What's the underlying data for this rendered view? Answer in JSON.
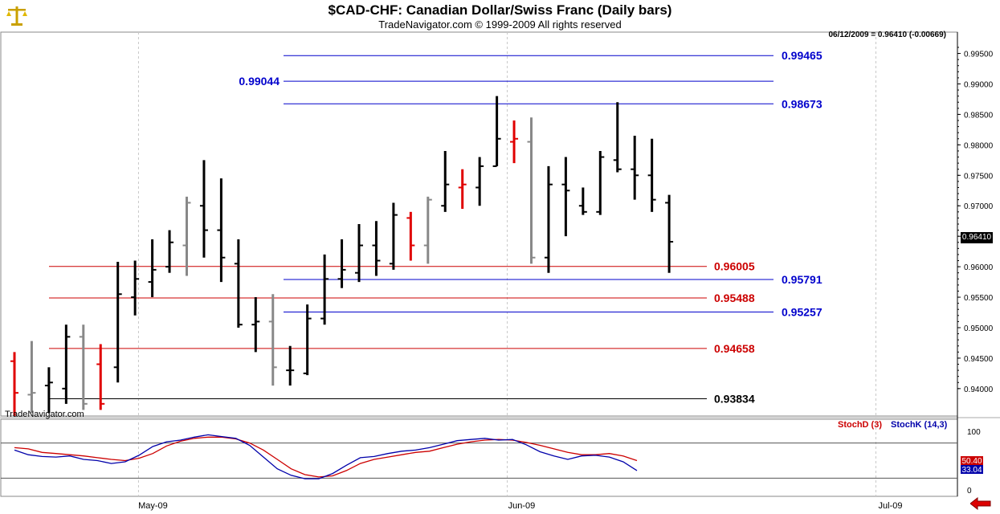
{
  "header": {
    "title": "$CAD-CHF:  Canadian Dollar/Swiss Franc  (Daily bars)",
    "subtitle": "TradeNavigator.com © 1999-2009 All rights reserved",
    "status": "06/12/2009 = 0.96410 (-0.00669)",
    "watermark": "TradeNavigator.com"
  },
  "colors": {
    "up": "#000000",
    "down": "#e00000",
    "neutral": "#888888",
    "fib_red": "#cc0000",
    "fib_blue": "#0000cc",
    "grid": "#c8c8c8"
  },
  "chart_data": [
    {
      "type": "ohlc",
      "title": "$CAD-CHF:  Canadian Dollar/Swiss Franc  (Daily bars)",
      "ylim": [
        0.9355,
        0.9985
      ],
      "y_ticks": [
        "0.99500",
        "0.99000",
        "0.98500",
        "0.98000",
        "0.97500",
        "0.97000",
        "0.96500",
        "0.96000",
        "0.95500",
        "0.95000",
        "0.94500",
        "0.94000"
      ],
      "x_ticks": [
        {
          "index": 7.2,
          "label": "May-09"
        },
        {
          "index": 28.6,
          "label": "Jun-09"
        },
        {
          "index": 50,
          "label": "Jul-09"
        }
      ],
      "last_price": "0.96410",
      "bars": [
        {
          "o": 0.9445,
          "h": 0.946,
          "l": 0.9355,
          "c": 0.9393,
          "color": "down"
        },
        {
          "o": 0.939,
          "h": 0.9478,
          "l": 0.936,
          "c": 0.9393,
          "color": "neutral"
        },
        {
          "o": 0.9405,
          "h": 0.9435,
          "l": 0.936,
          "c": 0.941,
          "color": "up"
        },
        {
          "o": 0.94,
          "h": 0.9505,
          "l": 0.9375,
          "c": 0.9485,
          "color": "up"
        },
        {
          "o": 0.9485,
          "h": 0.9505,
          "l": 0.9365,
          "c": 0.9375,
          "color": "neutral"
        },
        {
          "o": 0.944,
          "h": 0.9473,
          "l": 0.9365,
          "c": 0.9375,
          "color": "down"
        },
        {
          "o": 0.9435,
          "h": 0.9608,
          "l": 0.941,
          "c": 0.9555,
          "color": "up"
        },
        {
          "o": 0.955,
          "h": 0.961,
          "l": 0.952,
          "c": 0.958,
          "color": "up"
        },
        {
          "o": 0.9575,
          "h": 0.9645,
          "l": 0.955,
          "c": 0.9595,
          "color": "up"
        },
        {
          "o": 0.96,
          "h": 0.966,
          "l": 0.959,
          "c": 0.964,
          "color": "up"
        },
        {
          "o": 0.9635,
          "h": 0.9715,
          "l": 0.9585,
          "c": 0.9705,
          "color": "neutral"
        },
        {
          "o": 0.97,
          "h": 0.9775,
          "l": 0.9615,
          "c": 0.966,
          "color": "up"
        },
        {
          "o": 0.966,
          "h": 0.9745,
          "l": 0.9575,
          "c": 0.9615,
          "color": "up"
        },
        {
          "o": 0.9605,
          "h": 0.9645,
          "l": 0.95,
          "c": 0.9505,
          "color": "up"
        },
        {
          "o": 0.9505,
          "h": 0.955,
          "l": 0.946,
          "c": 0.951,
          "color": "up"
        },
        {
          "o": 0.951,
          "h": 0.9555,
          "l": 0.9405,
          "c": 0.9435,
          "color": "neutral"
        },
        {
          "o": 0.943,
          "h": 0.947,
          "l": 0.9405,
          "c": 0.943,
          "color": "up"
        },
        {
          "o": 0.9425,
          "h": 0.9538,
          "l": 0.9422,
          "c": 0.9515,
          "color": "up"
        },
        {
          "o": 0.9515,
          "h": 0.962,
          "l": 0.9505,
          "c": 0.958,
          "color": "up"
        },
        {
          "o": 0.958,
          "h": 0.9645,
          "l": 0.9565,
          "c": 0.9595,
          "color": "up"
        },
        {
          "o": 0.959,
          "h": 0.967,
          "l": 0.9575,
          "c": 0.9635,
          "color": "up"
        },
        {
          "o": 0.9635,
          "h": 0.9675,
          "l": 0.9585,
          "c": 0.961,
          "color": "up"
        },
        {
          "o": 0.9605,
          "h": 0.9705,
          "l": 0.9595,
          "c": 0.9685,
          "color": "up"
        },
        {
          "o": 0.968,
          "h": 0.969,
          "l": 0.961,
          "c": 0.9635,
          "color": "down"
        },
        {
          "o": 0.9635,
          "h": 0.9715,
          "l": 0.9605,
          "c": 0.971,
          "color": "neutral"
        },
        {
          "o": 0.97,
          "h": 0.979,
          "l": 0.969,
          "c": 0.9735,
          "color": "up"
        },
        {
          "o": 0.973,
          "h": 0.976,
          "l": 0.9695,
          "c": 0.9735,
          "color": "down"
        },
        {
          "o": 0.973,
          "h": 0.978,
          "l": 0.97,
          "c": 0.9765,
          "color": "up"
        },
        {
          "o": 0.9765,
          "h": 0.988,
          "l": 0.9765,
          "c": 0.981,
          "color": "up"
        },
        {
          "o": 0.9805,
          "h": 0.984,
          "l": 0.977,
          "c": 0.981,
          "color": "down"
        },
        {
          "o": 0.9805,
          "h": 0.9845,
          "l": 0.9605,
          "c": 0.9615,
          "color": "neutral"
        },
        {
          "o": 0.9615,
          "h": 0.9765,
          "l": 0.959,
          "c": 0.9735,
          "color": "up"
        },
        {
          "o": 0.9735,
          "h": 0.978,
          "l": 0.965,
          "c": 0.9725,
          "color": "up"
        },
        {
          "o": 0.97,
          "h": 0.973,
          "l": 0.9685,
          "c": 0.969,
          "color": "up"
        },
        {
          "o": 0.969,
          "h": 0.979,
          "l": 0.9685,
          "c": 0.978,
          "color": "up"
        },
        {
          "o": 0.9775,
          "h": 0.987,
          "l": 0.9755,
          "c": 0.976,
          "color": "up"
        },
        {
          "o": 0.976,
          "h": 0.9815,
          "l": 0.971,
          "c": 0.975,
          "color": "up"
        },
        {
          "o": 0.975,
          "h": 0.981,
          "l": 0.969,
          "c": 0.971,
          "color": "up"
        },
        {
          "o": 0.9705,
          "h": 0.9718,
          "l": 0.959,
          "c": 0.9641,
          "color": "up"
        }
      ],
      "levels": [
        {
          "value": 0.99465,
          "label": "0.99465",
          "color": "blue",
          "label_side": "right"
        },
        {
          "value": 0.99044,
          "label": "0.99044",
          "color": "blue",
          "label_side": "left"
        },
        {
          "value": 0.98673,
          "label": "0.98673",
          "color": "blue",
          "label_side": "right"
        },
        {
          "value": 0.96005,
          "label": "0.96005",
          "color": "red",
          "label_side": "right"
        },
        {
          "value": 0.95791,
          "label": "0.95791",
          "color": "blue",
          "label_side": "right"
        },
        {
          "value": 0.95488,
          "label": "0.95488",
          "color": "red",
          "label_side": "right"
        },
        {
          "value": 0.95257,
          "label": "0.95257",
          "color": "blue",
          "label_side": "right"
        },
        {
          "value": 0.94658,
          "label": "0.94658",
          "color": "red",
          "label_side": "right"
        },
        {
          "value": 0.93834,
          "label": "0.93834",
          "color": "black",
          "label_side": "right"
        }
      ]
    },
    {
      "type": "line",
      "ylim": [
        0,
        100
      ],
      "y_ticks": [
        "100",
        "0"
      ],
      "reference_lines": [
        80,
        20
      ],
      "legend": [
        {
          "name": "StochD (3)",
          "color": "#cc0000"
        },
        {
          "name": "StochK (14,3)",
          "color": "#0000aa"
        }
      ],
      "last_values": {
        "stoch_d": "50.40",
        "stoch_k": "33.04"
      },
      "series": [
        {
          "name": "StochD (3)",
          "values": [
            72,
            70,
            64,
            62,
            60,
            58,
            55,
            52,
            50,
            54,
            62,
            75,
            83,
            88,
            90,
            90,
            87,
            80,
            68,
            52,
            36,
            26,
            22,
            24,
            33,
            45,
            52,
            56,
            60,
            64,
            66,
            72,
            78,
            82,
            85,
            86,
            85,
            81,
            76,
            70,
            64,
            60,
            60,
            62,
            58,
            50
          ]
        },
        {
          "name": "StochK (14,3)",
          "values": [
            68,
            60,
            57,
            56,
            58,
            52,
            50,
            45,
            48,
            59,
            74,
            82,
            85,
            90,
            94,
            91,
            88,
            76,
            56,
            36,
            25,
            19,
            19,
            28,
            42,
            55,
            57,
            62,
            66,
            68,
            72,
            78,
            84,
            86,
            88,
            85,
            86,
            77,
            65,
            58,
            52,
            58,
            59,
            56,
            48,
            33
          ]
        }
      ]
    }
  ]
}
